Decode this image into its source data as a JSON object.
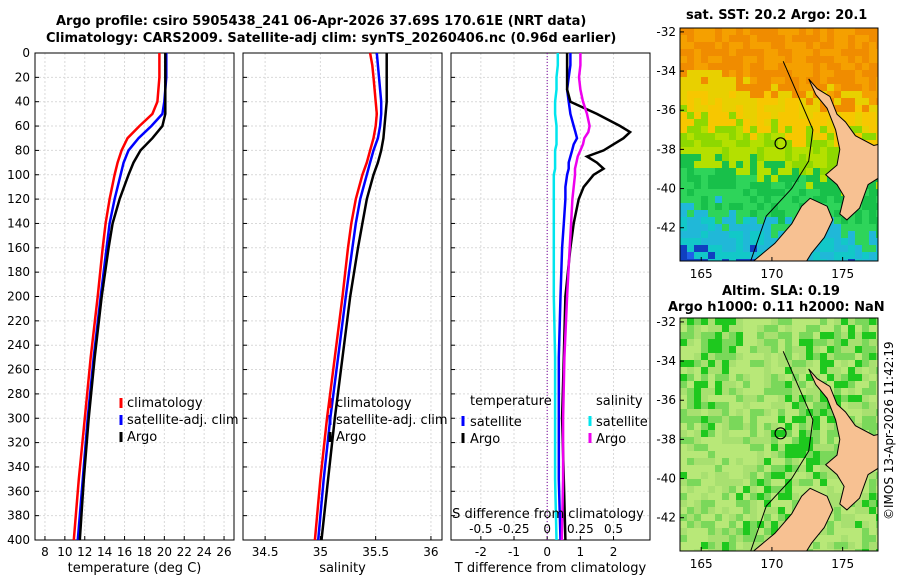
{
  "titles": {
    "line1": "Argo profile: csiro 5905438_241 06-Apr-2026 37.69S 170.61E (NRT data)",
    "line2": "Climatology: CARS2009. Satellite-adj clim: synTS_20260406.nc (0.96d earlier)"
  },
  "map_titles": {
    "sst": "sat. SST: 20.2 Argo: 20.1",
    "sla1": "Altim. SLA: 0.19",
    "sla2": "Argo h1000: 0.11 h2000: NaN"
  },
  "copyright": "©IMOS 13-Apr-2026 11:42:19",
  "colors": {
    "climatology": "#ff0000",
    "satellite": "#0000ff",
    "argo": "#000000",
    "s_satellite": "#00e5ee",
    "s_argo": "#ee00ee",
    "land": "#f7c192"
  },
  "chart_data": [
    {
      "type": "line",
      "name": "temperature-profile",
      "xlabel": "temperature (deg C)",
      "ylabel": "",
      "xlim": [
        7,
        27
      ],
      "ylim": [
        400,
        0
      ],
      "xticks": [
        "8",
        "10",
        "12",
        "14",
        "16",
        "18",
        "20",
        "22",
        "24",
        "26"
      ],
      "yticks": [
        "0",
        "20",
        "40",
        "60",
        "80",
        "100",
        "120",
        "140",
        "160",
        "180",
        "200",
        "220",
        "240",
        "260",
        "280",
        "300",
        "320",
        "340",
        "360",
        "380",
        "400"
      ],
      "depth": [
        0,
        10,
        20,
        30,
        40,
        50,
        60,
        70,
        80,
        90,
        100,
        120,
        140,
        160,
        200,
        250,
        300,
        350,
        400
      ],
      "series": [
        {
          "name": "climatology",
          "color": "#ff0000",
          "values": [
            19.5,
            19.5,
            19.5,
            19.4,
            19.3,
            18.8,
            17.5,
            16.3,
            15.7,
            15.3,
            15.0,
            14.5,
            14.1,
            13.8,
            13.3,
            12.6,
            12.0,
            11.4,
            10.9
          ]
        },
        {
          "name": "satellite-adj. clim",
          "color": "#0000ff",
          "values": [
            20.2,
            20.2,
            20.2,
            20.1,
            20.0,
            19.8,
            18.7,
            17.4,
            16.4,
            15.9,
            15.6,
            15.0,
            14.5,
            14.2,
            13.6,
            12.9,
            12.3,
            11.8,
            11.3
          ]
        },
        {
          "name": "Argo",
          "color": "#000000",
          "values": [
            20.1,
            20.1,
            20.1,
            20.1,
            20.1,
            20.1,
            19.8,
            18.8,
            17.6,
            16.9,
            16.4,
            15.5,
            14.8,
            14.4,
            13.7,
            13.0,
            12.4,
            11.9,
            11.5
          ]
        }
      ],
      "legend": [
        "climatology",
        "satellite-adj. clim",
        "Argo"
      ]
    },
    {
      "type": "line",
      "name": "salinity-profile",
      "xlabel": "salinity",
      "xlim": [
        34.3,
        36.1
      ],
      "ylim": [
        400,
        0
      ],
      "xticks": [
        "34.5",
        "35",
        "35.5",
        "36"
      ],
      "depth": [
        0,
        10,
        20,
        30,
        40,
        50,
        60,
        70,
        80,
        90,
        100,
        120,
        140,
        160,
        200,
        250,
        300,
        350,
        400
      ],
      "series": [
        {
          "name": "climatology",
          "color": "#ff0000",
          "values": [
            35.45,
            35.47,
            35.48,
            35.49,
            35.5,
            35.51,
            35.5,
            35.48,
            35.45,
            35.42,
            35.38,
            35.32,
            35.28,
            35.25,
            35.2,
            35.13,
            35.06,
            35.0,
            34.95
          ]
        },
        {
          "name": "satellite-adj. clim",
          "color": "#0000ff",
          "values": [
            35.51,
            35.52,
            35.53,
            35.54,
            35.55,
            35.55,
            35.54,
            35.52,
            35.48,
            35.45,
            35.42,
            35.36,
            35.32,
            35.29,
            35.23,
            35.16,
            35.09,
            35.03,
            34.98
          ]
        },
        {
          "name": "Argo",
          "color": "#000000",
          "values": [
            35.6,
            35.6,
            35.6,
            35.6,
            35.6,
            35.59,
            35.58,
            35.57,
            35.55,
            35.52,
            35.48,
            35.42,
            35.38,
            35.34,
            35.27,
            35.2,
            35.13,
            35.07,
            35.01
          ]
        }
      ],
      "legend": [
        "climatology",
        "satellite-adj. clim",
        "Argo"
      ]
    },
    {
      "type": "line",
      "name": "difference-profile",
      "xlabel": "T difference from climatology",
      "x2label": "S difference from climatology",
      "xlim": [
        -2.9,
        3.1
      ],
      "ylim": [
        400,
        0
      ],
      "xticks": [
        "-2",
        "-1",
        "0",
        "1",
        "2"
      ],
      "x2ticks": [
        "-0.5",
        "-0.25",
        "0",
        "0.25",
        "0.5"
      ],
      "depth": [
        0,
        10,
        20,
        30,
        40,
        50,
        60,
        65,
        70,
        75,
        80,
        85,
        90,
        95,
        100,
        110,
        120,
        140,
        160,
        200,
        250,
        300,
        350,
        400
      ],
      "series": [
        {
          "name": "T satellite",
          "color": "#0000ff",
          "values": [
            0.7,
            0.7,
            0.65,
            0.6,
            0.65,
            0.7,
            0.8,
            0.85,
            0.9,
            0.8,
            0.75,
            0.7,
            0.65,
            0.65,
            0.6,
            0.55,
            0.55,
            0.5,
            0.45,
            0.4,
            0.35,
            0.35,
            0.35,
            0.4
          ]
        },
        {
          "name": "T Argo",
          "color": "#000000",
          "values": [
            0.6,
            0.6,
            0.6,
            0.6,
            0.7,
            1.5,
            2.2,
            2.5,
            2.3,
            2.0,
            1.7,
            1.2,
            1.5,
            1.7,
            1.4,
            1.1,
            0.95,
            0.8,
            0.7,
            0.55,
            0.5,
            0.45,
            0.5,
            0.55
          ]
        },
        {
          "name": "S satellite",
          "color": "#00e5ee",
          "values": [
            0.08,
            0.08,
            0.07,
            0.07,
            0.06,
            0.06,
            0.07,
            0.07,
            0.07,
            0.07,
            0.06,
            0.06,
            0.06,
            0.06,
            0.05,
            0.05,
            0.05,
            0.05,
            0.05,
            0.05,
            0.06,
            0.06,
            0.06,
            0.07
          ]
        },
        {
          "name": "S Argo",
          "color": "#ee00ee",
          "values": [
            0.25,
            0.25,
            0.24,
            0.25,
            0.27,
            0.3,
            0.32,
            0.31,
            0.28,
            0.27,
            0.25,
            0.23,
            0.22,
            0.21,
            0.21,
            0.2,
            0.19,
            0.18,
            0.17,
            0.15,
            0.13,
            0.12,
            0.12,
            0.11
          ]
        }
      ],
      "legend_left_title": "temperature",
      "legend_left": [
        "satellite",
        "Argo"
      ],
      "legend_right_title": "salinity",
      "legend_right": [
        "satellite",
        "Argo"
      ]
    },
    {
      "type": "heatmap",
      "name": "sst-map",
      "title": "sat. SST: 20.2 Argo: 20.1",
      "xlim": [
        163.5,
        177.5
      ],
      "ylim": [
        -43.7,
        -31.8
      ],
      "xticks": [
        "165",
        "170",
        "175"
      ],
      "yticks": [
        "-32",
        "-34",
        "-36",
        "-38",
        "-40",
        "-42"
      ],
      "argo_position": [
        170.61,
        -37.69
      ]
    },
    {
      "type": "heatmap",
      "name": "sla-map",
      "title": "Altim. SLA: 0.19",
      "subtitle": "Argo h1000: 0.11 h2000: NaN",
      "xlim": [
        163.5,
        177.5
      ],
      "ylim": [
        -43.7,
        -31.8
      ],
      "xticks": [
        "165",
        "170",
        "175"
      ],
      "yticks": [
        "-32",
        "-34",
        "-36",
        "-38",
        "-40",
        "-42"
      ],
      "argo_position": [
        170.61,
        -37.69
      ]
    }
  ]
}
